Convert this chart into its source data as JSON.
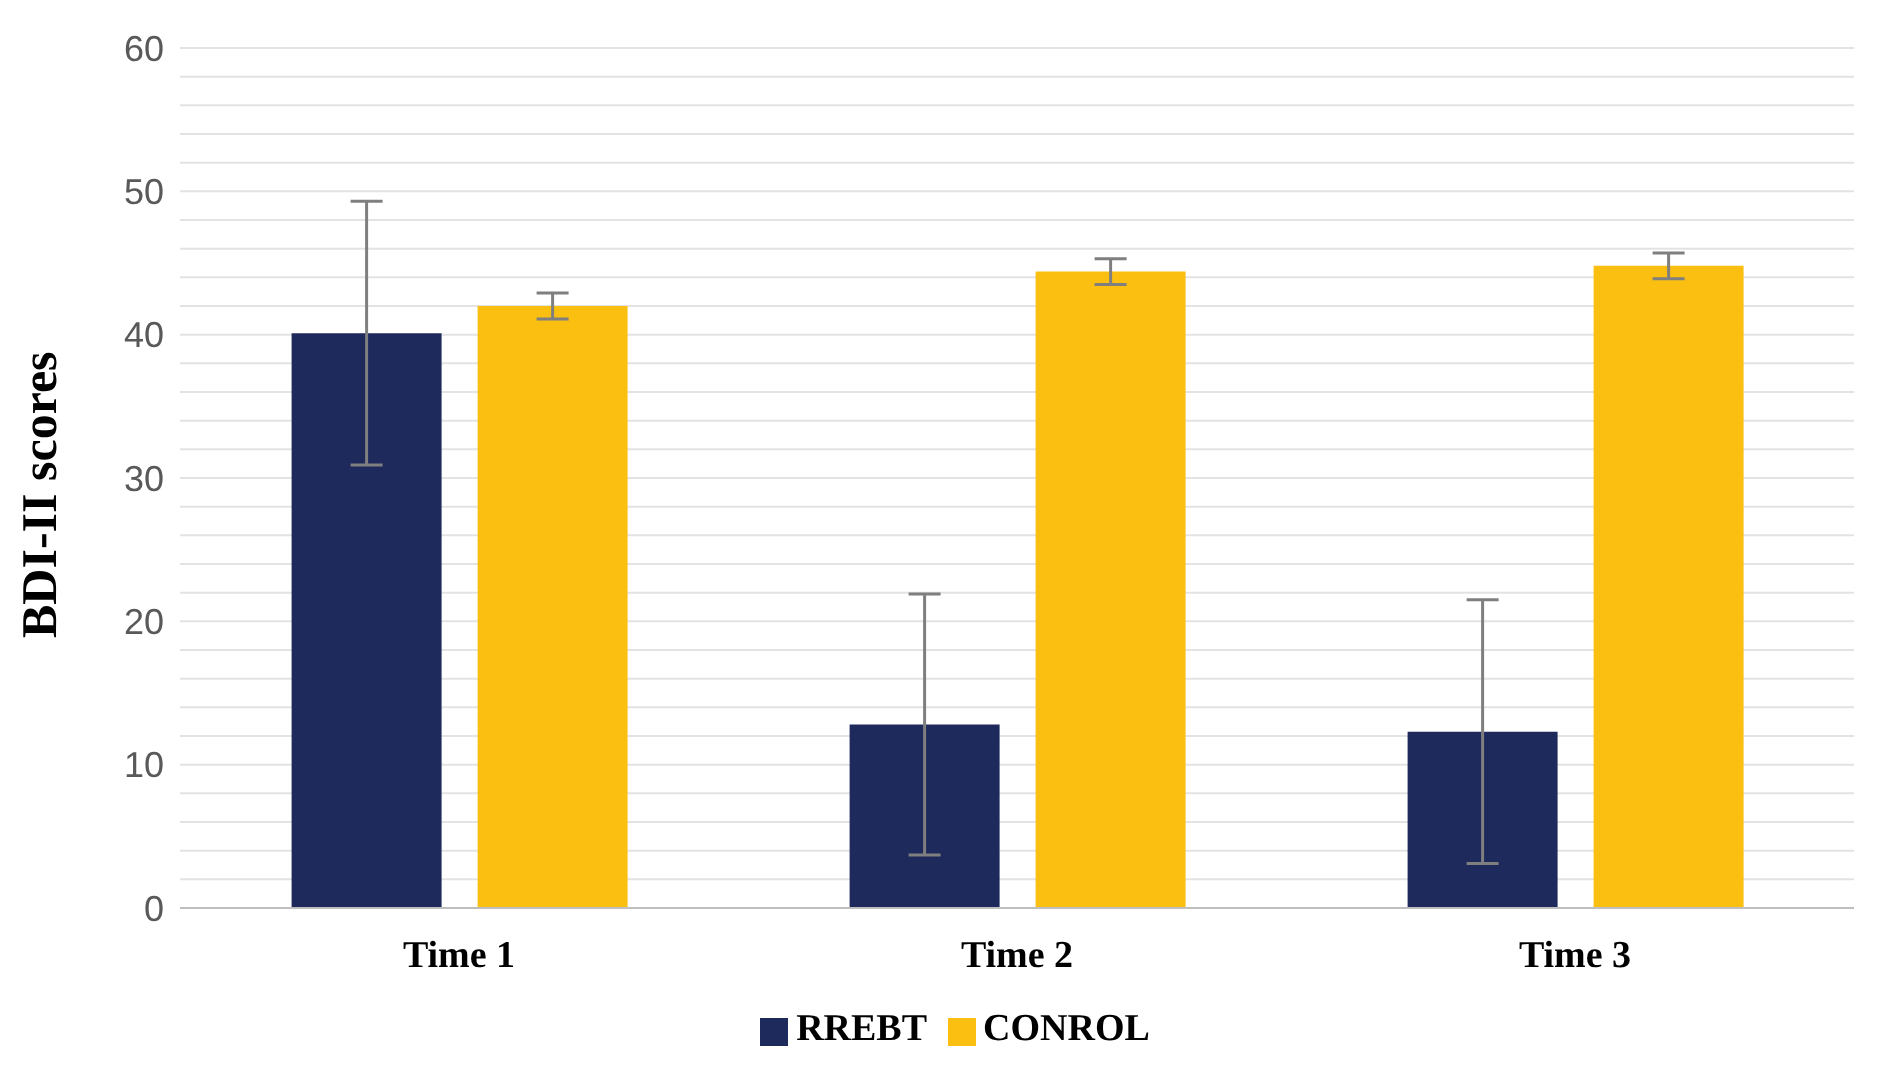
{
  "chart_data": {
    "type": "bar",
    "ylabel": "BDI-II scores",
    "categories": [
      "Time 1",
      "Time 2",
      "Time 3"
    ],
    "series": [
      {
        "name": "RREBT",
        "color": "#1f2a5c",
        "values": [
          40.1,
          12.8,
          12.3
        ],
        "errors": [
          9.2,
          9.1,
          9.2
        ]
      },
      {
        "name": "CONROL",
        "color": "#fbbf12",
        "values": [
          42.0,
          44.4,
          44.8
        ],
        "errors": [
          0.9,
          0.9,
          0.9
        ]
      }
    ],
    "ylim": [
      0,
      60
    ],
    "yticks": [
      0,
      {
        "value": 2,
        "label": null
      },
      {
        "value": 4,
        "label": null
      },
      {
        "value": 6,
        "label": null
      },
      {
        "value": 8,
        "label": null
      },
      10,
      {
        "value": 12,
        "label": null
      },
      {
        "value": 14,
        "label": null
      },
      {
        "value": 16,
        "label": null
      },
      {
        "value": 18,
        "label": null
      },
      20,
      {
        "value": 22,
        "label": null
      },
      {
        "value": 24,
        "label": null
      },
      {
        "value": 26,
        "label": null
      },
      {
        "value": 28,
        "label": null
      },
      30,
      {
        "value": 32,
        "label": null
      },
      {
        "value": 34,
        "label": null
      },
      {
        "value": 36,
        "label": null
      },
      {
        "value": 38,
        "label": null
      },
      40,
      {
        "value": 42,
        "label": null
      },
      {
        "value": 44,
        "label": null
      },
      {
        "value": 46,
        "label": null
      },
      {
        "value": 48,
        "label": null
      },
      50,
      {
        "value": 52,
        "label": null
      },
      {
        "value": 54,
        "label": null
      },
      {
        "value": 56,
        "label": null
      },
      {
        "value": 58,
        "label": null
      },
      60
    ],
    "grid": "y",
    "legend": "bottom"
  }
}
